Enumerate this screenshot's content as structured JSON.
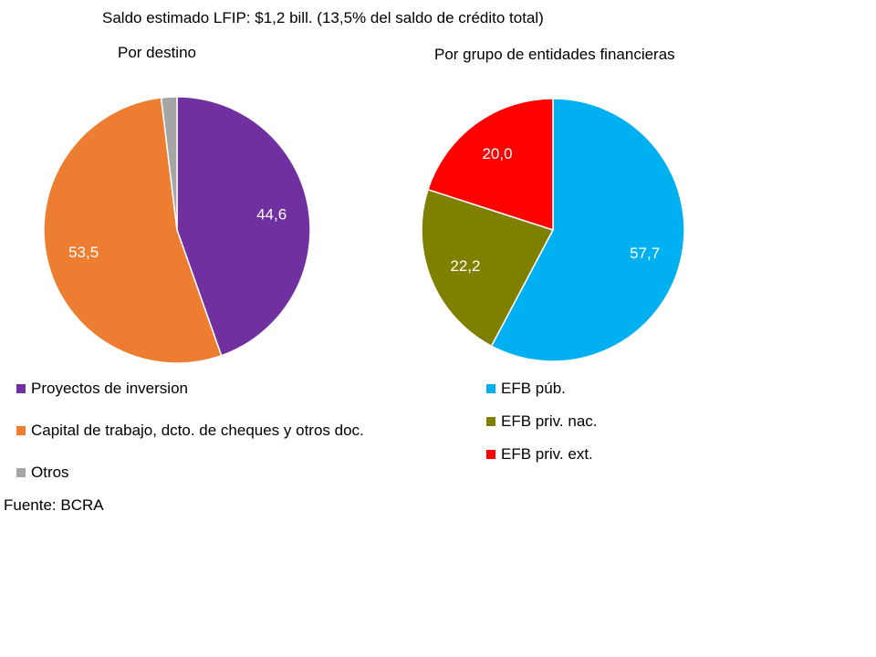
{
  "title": "Saldo estimado LFIP: $1,2 bill. (13,5% del saldo de crédito total)",
  "source": "Fuente: BCRA",
  "chart_data": [
    {
      "type": "pie",
      "title": "Por destino",
      "start": "top",
      "direction": "clockwise",
      "slices": [
        {
          "label": "Proyectos de inversion",
          "value": 44.6,
          "value_label": "44,6",
          "color": "#7030A0"
        },
        {
          "label": "Capital de trabajo, dcto. de cheques y otros doc.",
          "value": 53.5,
          "value_label": "53,5",
          "color": "#ED7D31"
        },
        {
          "label": "Otros",
          "value": 1.9,
          "value_label": "",
          "color": "#A5A5A5"
        }
      ],
      "legend": "bottom-left"
    },
    {
      "type": "pie",
      "title": "Por grupo de entidades financieras",
      "start": "top",
      "direction": "clockwise",
      "slices": [
        {
          "label": "EFB púb.",
          "value": 57.7,
          "value_label": "57,7",
          "color": "#00B0F0"
        },
        {
          "label": "EFB priv. nac.",
          "value": 22.2,
          "value_label": "22,2",
          "color": "#808000"
        },
        {
          "label": "EFB priv. ext.",
          "value": 20.0,
          "value_label": "20,0",
          "color": "#FF0000"
        }
      ],
      "legend": "bottom-right"
    }
  ]
}
